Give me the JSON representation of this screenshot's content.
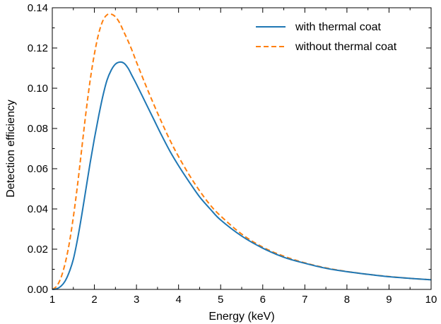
{
  "chart_data": {
    "type": "line",
    "xlabel": "Energy (keV)",
    "ylabel": "Detection efficiency",
    "xlim": [
      1,
      10
    ],
    "ylim": [
      0,
      0.14
    ],
    "x_ticks": [
      1,
      2,
      3,
      4,
      5,
      6,
      7,
      8,
      9,
      10
    ],
    "y_ticks": [
      0.0,
      0.02,
      0.04,
      0.06,
      0.08,
      0.1,
      0.12,
      0.14
    ],
    "x_tick_labels": [
      "1",
      "2",
      "3",
      "4",
      "5",
      "6",
      "7",
      "8",
      "9",
      "10"
    ],
    "y_tick_labels": [
      "0.00",
      "0.02",
      "0.04",
      "0.06",
      "0.08",
      "0.10",
      "0.12",
      "0.14"
    ],
    "grid": false,
    "legend_position": "top-right",
    "series": [
      {
        "name": "with thermal coat",
        "color": "#1f77b4",
        "style": "solid",
        "x": [
          1.0,
          1.1,
          1.2,
          1.3,
          1.4,
          1.5,
          1.6,
          1.7,
          1.8,
          1.9,
          2.0,
          2.1,
          2.2,
          2.3,
          2.4,
          2.5,
          2.6,
          2.7,
          2.8,
          2.9,
          3.0,
          3.2,
          3.4,
          3.6,
          3.8,
          4.0,
          4.25,
          4.5,
          4.75,
          5.0,
          5.5,
          6.0,
          6.5,
          7.0,
          7.5,
          8.0,
          8.5,
          9.0,
          9.5,
          10.0
        ],
        "y": [
          0.0,
          0.0003,
          0.0015,
          0.004,
          0.0085,
          0.015,
          0.025,
          0.037,
          0.05,
          0.063,
          0.075,
          0.086,
          0.096,
          0.104,
          0.109,
          0.112,
          0.113,
          0.1125,
          0.11,
          0.106,
          0.102,
          0.0935,
          0.085,
          0.0765,
          0.0685,
          0.0615,
          0.0535,
          0.046,
          0.04,
          0.0345,
          0.0265,
          0.0205,
          0.016,
          0.013,
          0.0105,
          0.0088,
          0.0075,
          0.0063,
          0.0055,
          0.0048
        ]
      },
      {
        "name": "without thermal coat",
        "color": "#ff7f0e",
        "style": "dashed",
        "x": [
          1.0,
          1.1,
          1.2,
          1.3,
          1.4,
          1.5,
          1.6,
          1.7,
          1.8,
          1.9,
          2.0,
          2.1,
          2.2,
          2.3,
          2.4,
          2.5,
          2.6,
          2.7,
          2.8,
          2.9,
          3.0,
          3.2,
          3.4,
          3.6,
          3.8,
          4.0,
          4.25,
          4.5,
          4.75,
          5.0,
          5.5,
          6.0,
          6.5,
          7.0,
          7.5,
          8.0,
          8.5,
          9.0,
          9.5,
          10.0
        ],
        "y": [
          0.0,
          0.0015,
          0.0055,
          0.0125,
          0.0225,
          0.036,
          0.052,
          0.07,
          0.088,
          0.104,
          0.117,
          0.127,
          0.1335,
          0.1365,
          0.1368,
          0.1355,
          0.1325,
          0.128,
          0.1235,
          0.1185,
          0.113,
          0.1025,
          0.0925,
          0.083,
          0.074,
          0.066,
          0.057,
          0.049,
          0.042,
          0.0365,
          0.0275,
          0.021,
          0.0165,
          0.0132,
          0.0107,
          0.0089,
          0.0075,
          0.0064,
          0.0055,
          0.0048
        ]
      }
    ]
  }
}
